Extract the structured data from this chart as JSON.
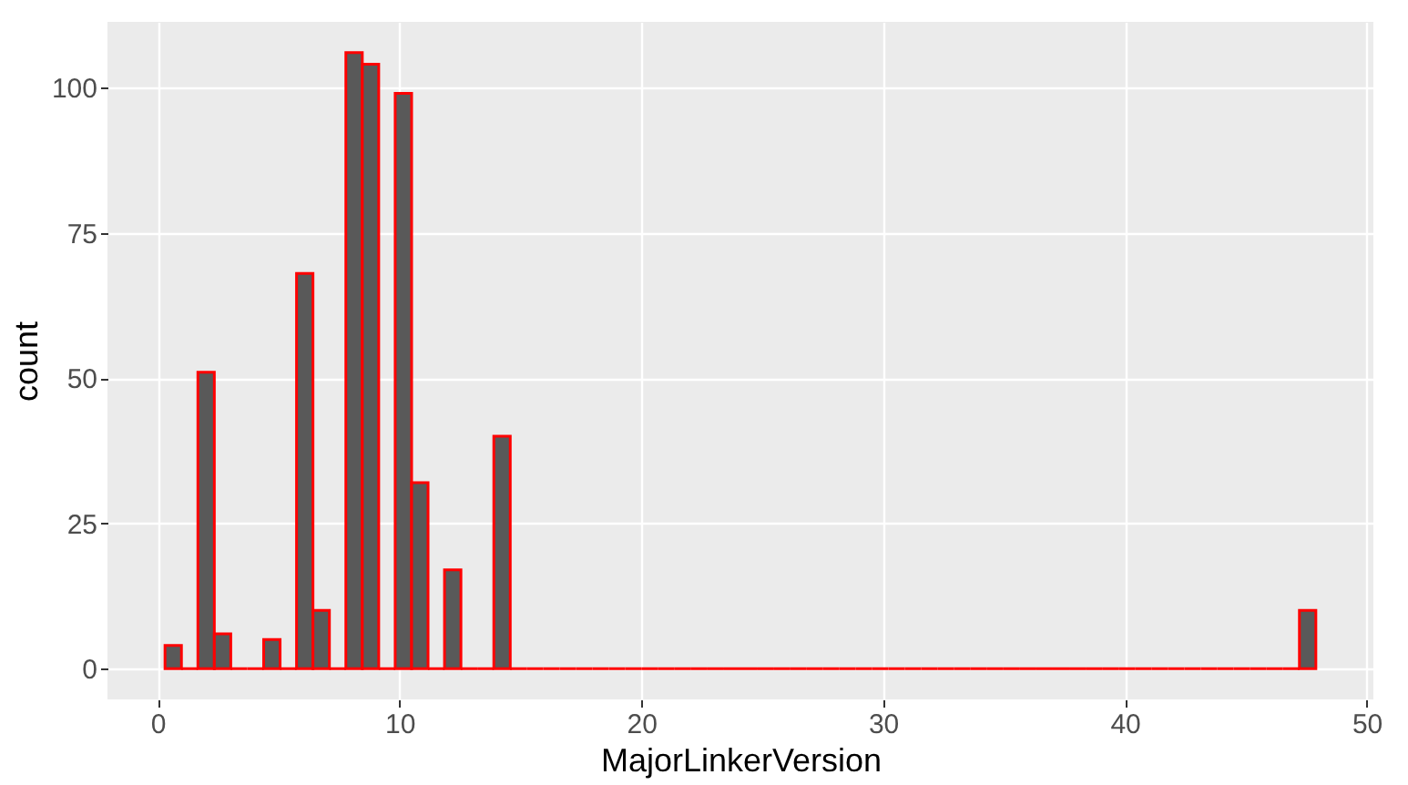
{
  "chart_data": {
    "type": "histogram",
    "xlabel": "MajorLinkerVersion",
    "ylabel": "count",
    "bins": [
      0.3,
      0.98,
      1.66,
      2.34,
      3.02,
      3.7,
      4.38,
      5.06,
      5.74,
      6.42,
      7.1,
      7.78,
      8.46,
      9.14,
      9.82,
      10.5,
      11.18,
      11.86,
      12.54,
      13.22,
      13.9,
      14.58,
      15.26,
      15.94,
      16.62,
      17.3,
      17.98,
      18.66,
      19.34,
      20.02,
      20.7,
      21.38,
      22.06,
      22.74,
      23.42,
      24.1,
      24.78,
      25.46,
      26.14,
      26.82,
      27.5,
      28.18,
      28.86,
      29.54,
      30.22,
      30.9,
      31.58,
      32.26,
      32.94,
      33.62,
      34.3,
      34.98,
      35.66,
      36.34,
      37.02,
      37.7,
      38.38,
      39.06,
      39.74,
      40.42,
      41.1,
      41.78,
      42.46,
      43.14,
      43.82,
      44.5,
      45.18,
      45.86,
      46.54,
      47.22,
      47.9
    ],
    "values": [
      4,
      0,
      51,
      6,
      0,
      0,
      5,
      0,
      68,
      10,
      0,
      106,
      104,
      0,
      99,
      32,
      0,
      17,
      0,
      0,
      40,
      0,
      0,
      0,
      0,
      0,
      0,
      0,
      0,
      0,
      0,
      0,
      0,
      0,
      0,
      0,
      0,
      0,
      0,
      0,
      0,
      0,
      0,
      0,
      0,
      0,
      0,
      0,
      0,
      0,
      0,
      0,
      0,
      0,
      0,
      0,
      0,
      0,
      0,
      0,
      0,
      0,
      0,
      0,
      0,
      0,
      0,
      0,
      0,
      10
    ],
    "colors": [
      "#595959",
      "#ff0000",
      "#595959",
      "#595959",
      "#ff0000",
      "#ff0000",
      "#595959",
      "#ff0000",
      "#595959",
      "#595959",
      "#ff0000",
      "#595959",
      "#595959",
      "#ff0000",
      "#595959",
      "#595959",
      "#ff0000",
      "#595959",
      "#ff0000",
      "#ff0000",
      "#595959",
      "#ff0000",
      "#ff0000",
      "#ff0000",
      "#ff0000",
      "#ff0000",
      "#ff0000",
      "#ff0000",
      "#ff0000",
      "#ff0000",
      "#ff0000",
      "#ff0000",
      "#ff0000",
      "#ff0000",
      "#ff0000",
      "#ff0000",
      "#ff0000",
      "#ff0000",
      "#ff0000",
      "#ff0000",
      "#ff0000",
      "#ff0000",
      "#ff0000",
      "#ff0000",
      "#ff0000",
      "#ff0000",
      "#ff0000",
      "#ff0000",
      "#ff0000",
      "#ff0000",
      "#ff0000",
      "#ff0000",
      "#ff0000",
      "#ff0000",
      "#ff0000",
      "#ff0000",
      "#ff0000",
      "#ff0000",
      "#ff0000",
      "#ff0000",
      "#ff0000",
      "#ff0000",
      "#ff0000",
      "#ff0000",
      "#ff0000",
      "#ff0000",
      "#ff0000",
      "#ff0000",
      "#ff0000",
      "#595959"
    ],
    "xlim": [
      -2.08,
      50.28
    ],
    "xticks": [
      0,
      10,
      20,
      30,
      40,
      50
    ],
    "ylim": [
      -5.3,
      111.3
    ],
    "yticks": [
      0,
      25,
      50,
      75,
      100
    ],
    "grid": true
  }
}
